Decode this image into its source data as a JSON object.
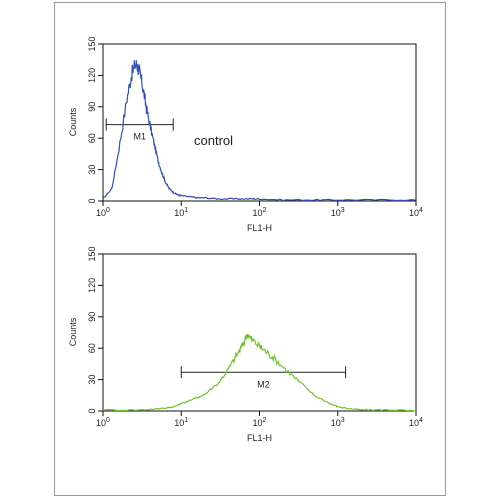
{
  "chart_data": [
    {
      "type": "line",
      "xscale": "log",
      "xlim": [
        1,
        10000
      ],
      "ylim": [
        0,
        150
      ],
      "xlabel": "FL1-H",
      "ylabel": "Counts",
      "x_tick_labels": [
        {
          "base": "10",
          "exp": "0"
        },
        {
          "base": "10",
          "exp": "1"
        },
        {
          "base": "10",
          "exp": "2"
        },
        {
          "base": "10",
          "exp": "3"
        },
        {
          "base": "10",
          "exp": "4"
        }
      ],
      "y_ticks": [
        "0",
        "30",
        "60",
        "90",
        "120",
        "150"
      ],
      "color": "#2f4fb0",
      "annotation": "control",
      "marker": {
        "label": "M1",
        "x_start": 1.1,
        "x_end": 7.9,
        "y": 73
      },
      "series": [
        {
          "x": [
            1.0,
            1.3,
            1.6,
            2.0,
            2.3,
            2.6,
            2.8,
            3.0,
            3.3,
            3.6,
            4.0,
            4.5,
            5.0,
            5.6,
            6.3,
            7.0,
            8.0,
            9.0,
            10,
            13,
            16,
            20,
            30,
            50,
            80,
            100,
            200,
            500,
            1000,
            3000,
            10000
          ],
          "y": [
            2,
            12,
            50,
            95,
            120,
            131,
            128,
            120,
            105,
            88,
            72,
            55,
            40,
            28,
            18,
            12,
            8,
            6,
            5,
            4,
            3,
            3,
            2,
            2,
            2,
            2,
            1,
            1,
            1,
            1,
            1
          ]
        }
      ]
    },
    {
      "type": "line",
      "xscale": "log",
      "xlim": [
        1,
        10000
      ],
      "ylim": [
        0,
        150
      ],
      "xlabel": "FL1-H",
      "ylabel": "Counts",
      "x_tick_labels": [
        {
          "base": "10",
          "exp": "0"
        },
        {
          "base": "10",
          "exp": "1"
        },
        {
          "base": "10",
          "exp": "2"
        },
        {
          "base": "10",
          "exp": "3"
        },
        {
          "base": "10",
          "exp": "4"
        }
      ],
      "y_ticks": [
        "0",
        "30",
        "60",
        "90",
        "120",
        "150"
      ],
      "color": "#6cc230",
      "marker": {
        "label": "M2",
        "x_start": 10,
        "x_end": 1260,
        "y": 37
      },
      "series": [
        {
          "x": [
            1,
            3,
            5,
            8,
            10,
            15,
            20,
            30,
            40,
            50,
            60,
            70,
            80,
            100,
            120,
            150,
            200,
            300,
            500,
            800,
            1000,
            1500,
            2000,
            3000,
            5000,
            10000
          ],
          "y": [
            1,
            1,
            2,
            4,
            7,
            12,
            16,
            27,
            40,
            52,
            62,
            74,
            68,
            62,
            57,
            51,
            42,
            30,
            15,
            7,
            4,
            2,
            1,
            1,
            1,
            0
          ]
        }
      ]
    }
  ]
}
